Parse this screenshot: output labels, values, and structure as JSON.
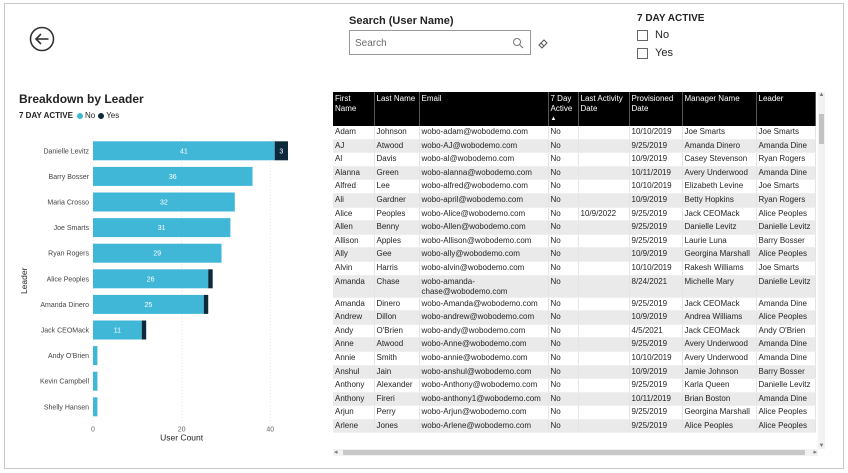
{
  "search": {
    "title": "Search (User Name)",
    "placeholder": "Search"
  },
  "slicer": {
    "title": "7 DAY ACTIVE",
    "options": [
      "No",
      "Yes"
    ]
  },
  "colors": {
    "no": "#41b7d7",
    "yes": "#0d2a3a",
    "header_bg": "#000000"
  },
  "chart_data": {
    "type": "bar",
    "orientation": "horizontal",
    "stacked": true,
    "title": "Breakdown by Leader",
    "legend_title": "7 DAY ACTIVE",
    "legend_position": "top-left",
    "categories": [
      "Danielle Levitz",
      "Barry Bosser",
      "Maria Crosso",
      "Joe Smarts",
      "Ryan Rogers",
      "Alice Peoples",
      "Amanda Dinero",
      "Jack CEOMack",
      "Andy O'Brien",
      "Kevin Campbell",
      "Shelly Hansen"
    ],
    "series": [
      {
        "name": "No",
        "values": [
          41,
          36,
          32,
          31,
          29,
          26,
          25,
          11,
          1,
          1,
          1
        ],
        "labels": [
          "41",
          "36",
          "32",
          "31",
          "29",
          "26",
          "25",
          "11",
          "",
          "",
          ""
        ]
      },
      {
        "name": "Yes",
        "values": [
          3,
          0,
          0,
          0,
          0,
          1,
          1,
          1,
          0,
          0,
          0
        ],
        "labels": [
          "3",
          "",
          "",
          "",
          "",
          "",
          "",
          "",
          "",
          "",
          ""
        ]
      }
    ],
    "xlabel": "User Count",
    "ylabel": "Leader",
    "xlim": [
      0,
      44
    ],
    "xticks": [
      0,
      20,
      40
    ],
    "grid": true
  },
  "table": {
    "columns": [
      {
        "label": "First Name"
      },
      {
        "label": "Last Name"
      },
      {
        "label": "Email"
      },
      {
        "label": "7 Day Active",
        "sort": "▲"
      },
      {
        "label": "Last Activity Date"
      },
      {
        "label": "Provisioned Date"
      },
      {
        "label": "Manager Name"
      },
      {
        "label": "Leader"
      }
    ],
    "rows": [
      [
        "Adam",
        "Johnson",
        "wobo-adam@wobodemo.com",
        "No",
        "",
        "10/10/2019",
        "Joe Smarts",
        "Joe Smarts"
      ],
      [
        "AJ",
        "Atwood",
        "wobo-AJ@wobodemo.com",
        "No",
        "",
        "9/25/2019",
        "Amanda Dinero",
        "Amanda Dine"
      ],
      [
        "Al",
        "Davis",
        "wobo-al@wobodemo.com",
        "No",
        "",
        "10/9/2019",
        "Casey Stevenson",
        "Ryan Rogers"
      ],
      [
        "Alanna",
        "Green",
        "wobo-alanna@wobodemo.com",
        "No",
        "",
        "10/11/2019",
        "Avery Underwood",
        "Amanda Dine"
      ],
      [
        "Alfred",
        "Lee",
        "wobo-alfred@wobodemo.com",
        "No",
        "",
        "10/10/2019",
        "Elizabeth Levine",
        "Joe Smarts"
      ],
      [
        "Ali",
        "Gardner",
        "wobo-april@wobodemo.com",
        "No",
        "",
        "10/9/2019",
        "Betty Hopkins",
        "Ryan Rogers"
      ],
      [
        "Alice",
        "Peoples",
        "wobo-Alice@wobodemo.com",
        "No",
        "10/9/2022",
        "9/25/2019",
        "Jack CEOMack",
        "Alice Peoples"
      ],
      [
        "Allen",
        "Benny",
        "wobo-Allen@wobodemo.com",
        "No",
        "",
        "9/25/2019",
        "Danielle Levitz",
        "Danielle Levitz"
      ],
      [
        "Allison",
        "Apples",
        "wobo-Allison@wobodemo.com",
        "No",
        "",
        "9/25/2019",
        "Laurie Luna",
        "Barry Bosser"
      ],
      [
        "Ally",
        "Gee",
        "wobo-ally@wobodemo.com",
        "No",
        "",
        "10/9/2019",
        "Georgina Marshall",
        "Alice Peoples"
      ],
      [
        "Alvin",
        "Harris",
        "wobo-alvin@wobodemo.com",
        "No",
        "",
        "10/10/2019",
        "Rakesh Williams",
        "Joe Smarts"
      ],
      [
        "Amanda",
        "Chase",
        "wobo-amanda-chase@wobodemo.com",
        "No",
        "",
        "8/24/2021",
        "Michelle Mary",
        "Danielle Levitz"
      ],
      [
        "Amanda",
        "Dinero",
        "wobo-Amanda@wobodemo.com",
        "No",
        "",
        "9/25/2019",
        "Jack CEOMack",
        "Amanda Dine"
      ],
      [
        "Andrew",
        "Dillon",
        "wobo-andrew@wobodemo.com",
        "No",
        "",
        "10/9/2019",
        "Andrea Williams",
        "Alice Peoples"
      ],
      [
        "Andy",
        "O'Brien",
        "wobo-andy@wobodemo.com",
        "No",
        "",
        "4/5/2021",
        "Jack CEOMack",
        "Andy O'Brien"
      ],
      [
        "Anne",
        "Atwood",
        "wobo-Anne@wobodemo.com",
        "No",
        "",
        "9/25/2019",
        "Avery Underwood",
        "Amanda Dine"
      ],
      [
        "Annie",
        "Smith",
        "wobo-annie@wobodemo.com",
        "No",
        "",
        "10/10/2019",
        "Avery Underwood",
        "Amanda Dine"
      ],
      [
        "Anshul",
        "Jain",
        "wobo-anshul@wobodemo.com",
        "No",
        "",
        "10/9/2019",
        "Jamie Johnson",
        "Barry Bosser"
      ],
      [
        "Anthony",
        "Alexander",
        "wobo-Anthony@wobodemo.com",
        "No",
        "",
        "9/25/2019",
        "Karla Queen",
        "Danielle Levitz"
      ],
      [
        "Anthony",
        "Fireri",
        "wobo-anthony1@wobodemo.com",
        "No",
        "",
        "10/11/2019",
        "Brian Boston",
        "Amanda Dine"
      ],
      [
        "Arjun",
        "Perry",
        "wobo-Arjun@wobodemo.com",
        "No",
        "",
        "9/25/2019",
        "Georgina Marshall",
        "Alice Peoples"
      ],
      [
        "Arlene",
        "Jones",
        "wobo-Arlene@wobodemo.com",
        "No",
        "",
        "9/25/2019",
        "Alice Peoples",
        "Alice Peoples"
      ]
    ]
  }
}
